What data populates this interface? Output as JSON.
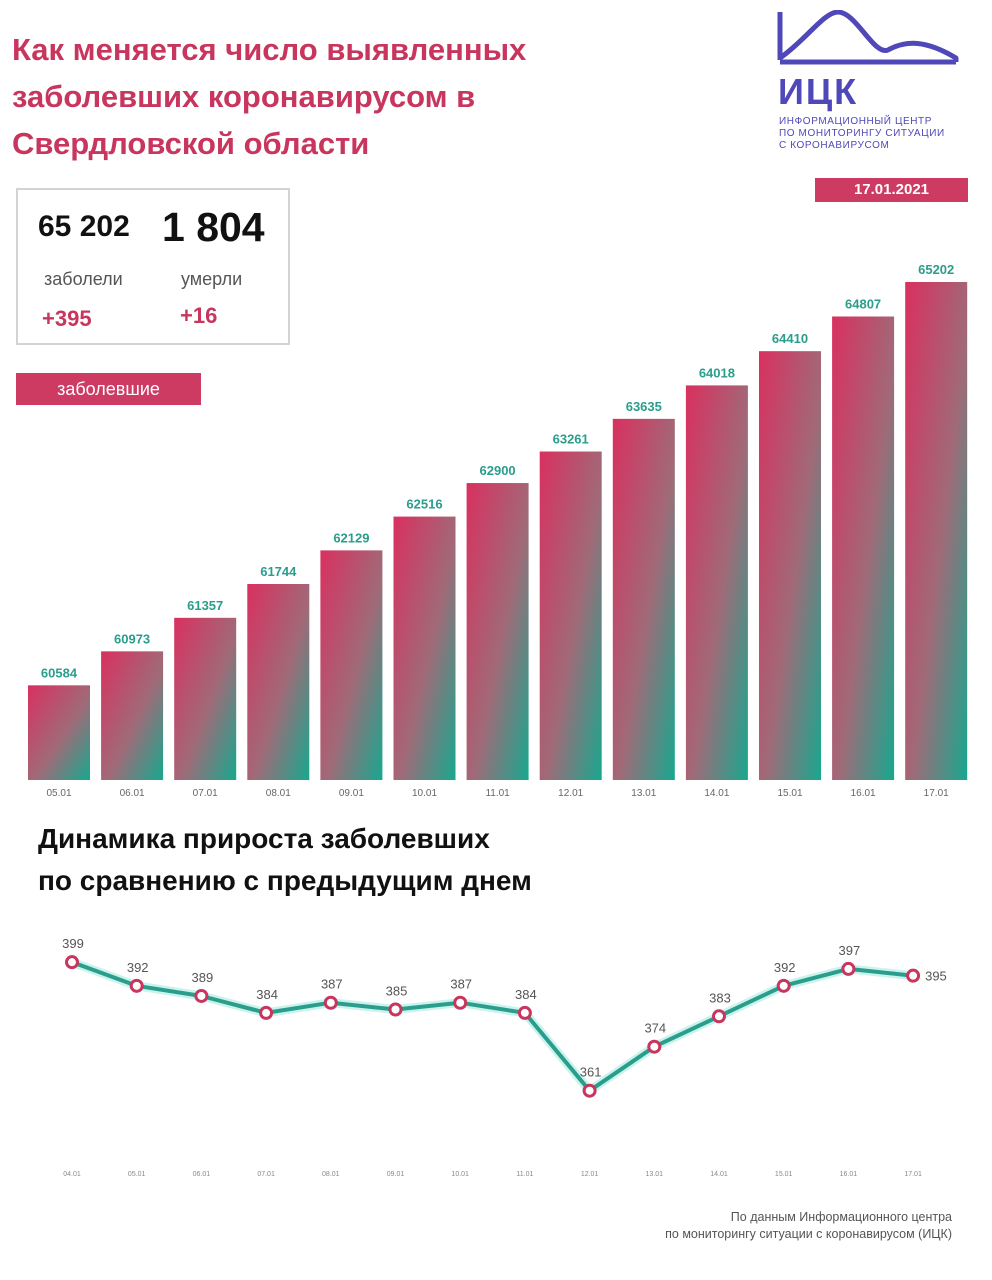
{
  "header": {
    "title_lines": [
      "Как меняется число выявленных",
      "заболевших коронавирусом в",
      "Свердловской области"
    ]
  },
  "logo": {
    "name": "ИЦК",
    "caption_lines": [
      "Информационный центр",
      "по мониторингу ситуации",
      "с коронавирусом"
    ]
  },
  "date_badge": "17.01.2021",
  "stats": {
    "cases_total": "65 202",
    "deaths_total": "1 804",
    "cases_label": "заболели",
    "deaths_label": "умерли",
    "cases_delta": "+395",
    "deaths_delta": "+16"
  },
  "legend_label": "заболевшие",
  "subtitle_lines": [
    "Динамика прироста заболевших",
    "по сравнению с предыдущим днем"
  ],
  "footer_lines": [
    "По данным Информационного центра",
    "по мониторингу ситуации с коронавирусом (ИЦК)"
  ],
  "colors": {
    "accent": "#cd3b62",
    "teal": "#2a9d8c",
    "title": "#c8355d",
    "logo": "#5048b8"
  },
  "chart_data": [
    {
      "type": "bar",
      "categories": [
        "05.01",
        "06.01",
        "07.01",
        "08.01",
        "09.01",
        "10.01",
        "11.01",
        "12.01",
        "13.01",
        "14.01",
        "15.01",
        "16.01",
        "17.01"
      ],
      "values": [
        60584,
        60973,
        61357,
        61744,
        62129,
        62516,
        62900,
        63261,
        63635,
        64018,
        64410,
        64807,
        65202
      ],
      "series": [
        {
          "name": "заболевшие",
          "values": [
            60584,
            60973,
            61357,
            61744,
            62129,
            62516,
            62900,
            63261,
            63635,
            64018,
            64410,
            64807,
            65202
          ]
        }
      ],
      "ylim": [
        59500,
        65300
      ],
      "grid": false
    },
    {
      "type": "line",
      "categories": [
        "04.01",
        "05.01",
        "06.01",
        "07.01",
        "08.01",
        "09.01",
        "10.01",
        "11.01",
        "12.01",
        "13.01",
        "14.01",
        "15.01",
        "16.01",
        "17.01"
      ],
      "values": [
        399,
        392,
        389,
        384,
        387,
        385,
        387,
        384,
        361,
        374,
        383,
        392,
        397,
        395
      ],
      "ylim": [
        355,
        402
      ],
      "grid": false
    }
  ]
}
